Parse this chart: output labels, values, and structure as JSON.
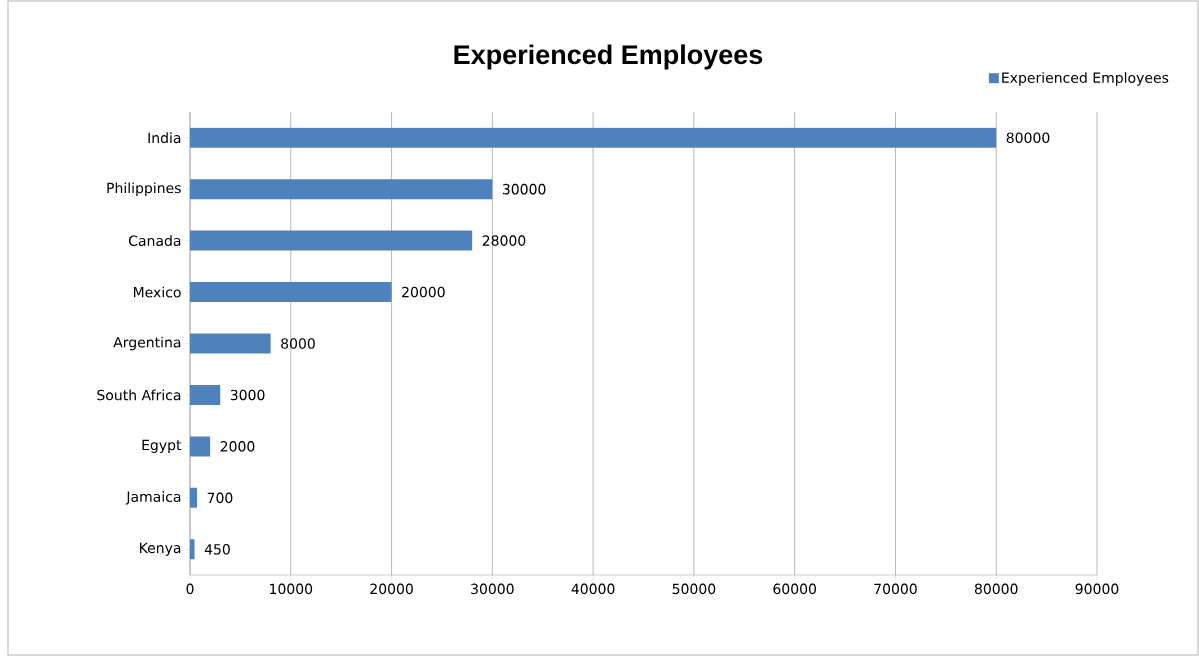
{
  "chart_data": {
    "type": "bar",
    "orientation": "horizontal",
    "title": "Experienced Employees",
    "categories": [
      "India",
      "Philippines",
      "Canada",
      "Mexico",
      "Argentina",
      "South Africa",
      "Egypt",
      "Jamaica",
      "Kenya"
    ],
    "series": [
      {
        "name": "Experienced Employees",
        "color": "#4f81bd",
        "values": [
          80000,
          30000,
          28000,
          20000,
          8000,
          3000,
          2000,
          700,
          450
        ]
      }
    ],
    "xlim": [
      0,
      90000
    ],
    "xticks": [
      0,
      10000,
      20000,
      30000,
      40000,
      50000,
      60000,
      70000,
      80000,
      90000
    ],
    "grid": "x",
    "legend": "top right",
    "data_labels": true
  }
}
